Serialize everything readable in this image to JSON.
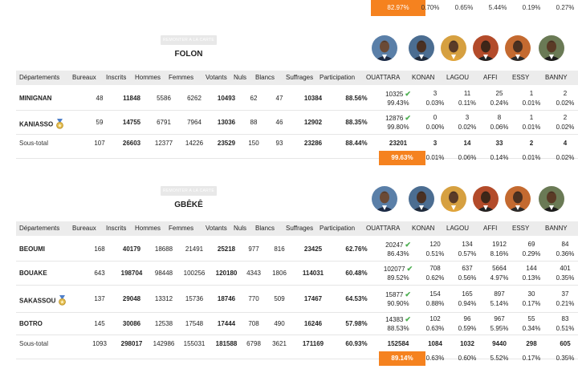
{
  "top_strip": {
    "ouattara_pct": "82.97%",
    "others": [
      "0.70%",
      "0.65%",
      "5.44%",
      "0.19%",
      "0.27%"
    ]
  },
  "region_button_label": "REMONTER A LA CARTE",
  "columns": [
    "Départements",
    "Bureaux",
    "Inscrits",
    "Hommes",
    "Femmes",
    "Votants",
    "Nuls",
    "Blancs",
    "Suffrages",
    "Participation",
    "OUATTARA",
    "KONAN",
    "LAGOU",
    "AFFI",
    "ESSY",
    "BANNY"
  ],
  "candidate_icons": [
    "ouattara-avatar",
    "konan-avatar",
    "lagou-avatar",
    "affi-avatar",
    "essy-avatar",
    "banny-avatar"
  ],
  "regions": [
    {
      "title": "FOLON",
      "rows": [
        {
          "dept": "MINIGNAN",
          "medal": false,
          "bureaux": "48",
          "inscrits": "11848",
          "hommes": "5586",
          "femmes": "6262",
          "votants": "10493",
          "nuls": "62",
          "blancs": "47",
          "suffrages": "10384",
          "participation": "88.56%",
          "votes": [
            "10325",
            "3",
            "11",
            "25",
            "1",
            "2"
          ],
          "pcts": [
            "99.43%",
            "0.03%",
            "0.11%",
            "0.24%",
            "0.01%",
            "0.02%"
          ]
        },
        {
          "dept": "KANIASSO",
          "medal": true,
          "bureaux": "59",
          "inscrits": "14755",
          "hommes": "6791",
          "femmes": "7964",
          "votants": "13036",
          "nuls": "88",
          "blancs": "46",
          "suffrages": "12902",
          "participation": "88.35%",
          "votes": [
            "12876",
            "0",
            "3",
            "8",
            "1",
            "2"
          ],
          "pcts": [
            "99.80%",
            "0.00%",
            "0.02%",
            "0.06%",
            "0.01%",
            "0.02%"
          ]
        }
      ],
      "subtotal": {
        "label": "Sous-total",
        "bureaux": "107",
        "inscrits": "26603",
        "hommes": "12377",
        "femmes": "14226",
        "votants": "23529",
        "nuls": "150",
        "blancs": "93",
        "suffrages": "23286",
        "participation": "88.44%",
        "votes": [
          "23201",
          "3",
          "14",
          "33",
          "2",
          "4"
        ],
        "pcts": [
          "99.63%",
          "0.01%",
          "0.06%",
          "0.14%",
          "0.01%",
          "0.02%"
        ]
      }
    },
    {
      "title": "GBÊKÊ",
      "rows": [
        {
          "dept": "BEOUMI",
          "medal": false,
          "bureaux": "168",
          "inscrits": "40179",
          "hommes": "18688",
          "femmes": "21491",
          "votants": "25218",
          "nuls": "977",
          "blancs": "816",
          "suffrages": "23425",
          "participation": "62.76%",
          "votes": [
            "20247",
            "120",
            "134",
            "1912",
            "69",
            "84"
          ],
          "pcts": [
            "86.43%",
            "0.51%",
            "0.57%",
            "8.16%",
            "0.29%",
            "0.36%"
          ]
        },
        {
          "dept": "BOUAKE",
          "medal": false,
          "bureaux": "643",
          "inscrits": "198704",
          "hommes": "98448",
          "femmes": "100256",
          "votants": "120180",
          "nuls": "4343",
          "blancs": "1806",
          "suffrages": "114031",
          "participation": "60.48%",
          "votes": [
            "102077",
            "708",
            "637",
            "5664",
            "144",
            "401"
          ],
          "pcts": [
            "89.52%",
            "0.62%",
            "0.56%",
            "4.97%",
            "0.13%",
            "0.35%"
          ]
        },
        {
          "dept": "SAKASSOU",
          "medal": true,
          "bureaux": "137",
          "inscrits": "29048",
          "hommes": "13312",
          "femmes": "15736",
          "votants": "18746",
          "nuls": "770",
          "blancs": "509",
          "suffrages": "17467",
          "participation": "64.53%",
          "votes": [
            "15877",
            "154",
            "165",
            "897",
            "30",
            "37"
          ],
          "pcts": [
            "90.90%",
            "0.88%",
            "0.94%",
            "5.14%",
            "0.17%",
            "0.21%"
          ]
        },
        {
          "dept": "BOTRO",
          "medal": false,
          "bureaux": "145",
          "inscrits": "30086",
          "hommes": "12538",
          "femmes": "17548",
          "votants": "17444",
          "nuls": "708",
          "blancs": "490",
          "suffrages": "16246",
          "participation": "57.98%",
          "votes": [
            "14383",
            "102",
            "96",
            "967",
            "55",
            "83"
          ],
          "pcts": [
            "88.53%",
            "0.63%",
            "0.59%",
            "5.95%",
            "0.34%",
            "0.51%"
          ]
        }
      ],
      "subtotal": {
        "label": "Sous-total",
        "bureaux": "1093",
        "inscrits": "298017",
        "hommes": "142986",
        "femmes": "155031",
        "votants": "181588",
        "nuls": "6798",
        "blancs": "3621",
        "suffrages": "171169",
        "participation": "60.93%",
        "votes": [
          "152584",
          "1084",
          "1032",
          "9440",
          "298",
          "605"
        ],
        "pcts": [
          "89.14%",
          "0.63%",
          "0.60%",
          "5.52%",
          "0.17%",
          "0.35%"
        ]
      }
    }
  ],
  "colors": {
    "accent": "#f5821f",
    "check": "#4caf50",
    "header_bg": "#ececec"
  }
}
